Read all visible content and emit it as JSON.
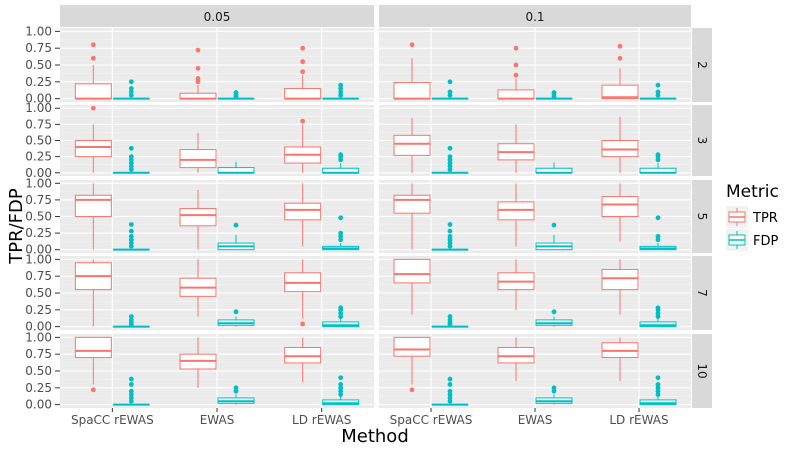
{
  "chart_data": {
    "type": "boxplot",
    "xlabel": "Method",
    "ylabel": "TPR/FDP",
    "ylim": [
      -0.05,
      1.05
    ],
    "yticks": [
      "0.00",
      "0.25",
      "0.50",
      "0.75",
      "1.00"
    ],
    "methods": [
      "SpaCC rEWAS",
      "EWAS",
      "LD rEWAS"
    ],
    "col_facets": [
      "0.05",
      "0.1"
    ],
    "row_facets": [
      "2",
      "3",
      "5",
      "7",
      "10"
    ],
    "legend": {
      "title": "Metric",
      "entries": [
        {
          "name": "TPR",
          "color": "#F8766D"
        },
        {
          "name": "FDP",
          "color": "#00BFC4"
        }
      ]
    },
    "panels": [
      {
        "col": "0.05",
        "row": "2",
        "boxes": [
          {
            "method": "SpaCC rEWAS",
            "metric": "TPR",
            "q1": 0.0,
            "median": 0.0,
            "q3": 0.22,
            "lo": 0.0,
            "hi": 0.5,
            "outliers": [
              0.6,
              0.8
            ]
          },
          {
            "method": "SpaCC rEWAS",
            "metric": "FDP",
            "q1": 0.0,
            "median": 0.0,
            "q3": 0.0,
            "lo": 0.0,
            "hi": 0.0,
            "outliers": [
              0.05,
              0.1,
              0.15,
              0.25
            ]
          },
          {
            "method": "EWAS",
            "metric": "TPR",
            "q1": 0.0,
            "median": 0.0,
            "q3": 0.08,
            "lo": 0.0,
            "hi": 0.2,
            "outliers": [
              0.25,
              0.3,
              0.45,
              0.72
            ]
          },
          {
            "method": "EWAS",
            "metric": "FDP",
            "q1": 0.0,
            "median": 0.0,
            "q3": 0.0,
            "lo": 0.0,
            "hi": 0.0,
            "outliers": [
              0.03,
              0.06,
              0.09
            ]
          },
          {
            "method": "LD rEWAS",
            "metric": "TPR",
            "q1": 0.0,
            "median": 0.0,
            "q3": 0.15,
            "lo": 0.0,
            "hi": 0.35,
            "outliers": [
              0.4,
              0.55,
              0.75
            ]
          },
          {
            "method": "LD rEWAS",
            "metric": "FDP",
            "q1": 0.0,
            "median": 0.0,
            "q3": 0.0,
            "lo": 0.0,
            "hi": 0.0,
            "outliers": [
              0.05,
              0.1,
              0.15,
              0.2
            ]
          }
        ]
      },
      {
        "col": "0.1",
        "row": "2",
        "boxes": [
          {
            "method": "SpaCC rEWAS",
            "metric": "TPR",
            "q1": 0.0,
            "median": 0.0,
            "q3": 0.24,
            "lo": 0.0,
            "hi": 0.6,
            "outliers": [
              0.8
            ]
          },
          {
            "method": "SpaCC rEWAS",
            "metric": "FDP",
            "q1": 0.0,
            "median": 0.0,
            "q3": 0.0,
            "lo": 0.0,
            "hi": 0.0,
            "outliers": [
              0.05,
              0.1,
              0.25
            ]
          },
          {
            "method": "EWAS",
            "metric": "TPR",
            "q1": 0.0,
            "median": 0.0,
            "q3": 0.13,
            "lo": 0.0,
            "hi": 0.3,
            "outliers": [
              0.35,
              0.5,
              0.75
            ]
          },
          {
            "method": "EWAS",
            "metric": "FDP",
            "q1": 0.0,
            "median": 0.0,
            "q3": 0.0,
            "lo": 0.0,
            "hi": 0.0,
            "outliers": [
              0.03,
              0.06,
              0.09
            ]
          },
          {
            "method": "LD rEWAS",
            "metric": "TPR",
            "q1": 0.0,
            "median": 0.02,
            "q3": 0.2,
            "lo": 0.0,
            "hi": 0.45,
            "outliers": [
              0.6,
              0.78
            ]
          },
          {
            "method": "LD rEWAS",
            "metric": "FDP",
            "q1": 0.0,
            "median": 0.0,
            "q3": 0.0,
            "lo": 0.0,
            "hi": 0.0,
            "outliers": [
              0.05,
              0.1,
              0.2
            ]
          }
        ]
      },
      {
        "col": "0.05",
        "row": "3",
        "boxes": [
          {
            "method": "SpaCC rEWAS",
            "metric": "TPR",
            "q1": 0.25,
            "median": 0.4,
            "q3": 0.5,
            "lo": 0.0,
            "hi": 0.75,
            "outliers": [
              1.0
            ]
          },
          {
            "method": "SpaCC rEWAS",
            "metric": "FDP",
            "q1": 0.0,
            "median": 0.0,
            "q3": 0.0,
            "lo": 0.0,
            "hi": 0.0,
            "outliers": [
              0.05,
              0.1,
              0.15,
              0.2,
              0.25,
              0.38
            ]
          },
          {
            "method": "EWAS",
            "metric": "TPR",
            "q1": 0.08,
            "median": 0.2,
            "q3": 0.36,
            "lo": 0.0,
            "hi": 0.62,
            "outliers": []
          },
          {
            "method": "EWAS",
            "metric": "FDP",
            "q1": 0.0,
            "median": 0.0,
            "q3": 0.08,
            "lo": 0.0,
            "hi": 0.17,
            "outliers": []
          },
          {
            "method": "LD rEWAS",
            "metric": "TPR",
            "q1": 0.15,
            "median": 0.28,
            "q3": 0.4,
            "lo": 0.0,
            "hi": 0.75,
            "outliers": [
              0.8
            ]
          },
          {
            "method": "LD rEWAS",
            "metric": "FDP",
            "q1": 0.0,
            "median": 0.0,
            "q3": 0.07,
            "lo": 0.0,
            "hi": 0.15,
            "outliers": [
              0.2,
              0.25,
              0.28
            ]
          }
        ]
      },
      {
        "col": "0.1",
        "row": "3",
        "boxes": [
          {
            "method": "SpaCC rEWAS",
            "metric": "TPR",
            "q1": 0.27,
            "median": 0.45,
            "q3": 0.58,
            "lo": 0.0,
            "hi": 0.85,
            "outliers": []
          },
          {
            "method": "SpaCC rEWAS",
            "metric": "FDP",
            "q1": 0.0,
            "median": 0.0,
            "q3": 0.0,
            "lo": 0.0,
            "hi": 0.0,
            "outliers": [
              0.05,
              0.1,
              0.15,
              0.2,
              0.25,
              0.38
            ]
          },
          {
            "method": "EWAS",
            "metric": "TPR",
            "q1": 0.2,
            "median": 0.32,
            "q3": 0.45,
            "lo": 0.0,
            "hi": 0.75,
            "outliers": []
          },
          {
            "method": "EWAS",
            "metric": "FDP",
            "q1": 0.0,
            "median": 0.0,
            "q3": 0.07,
            "lo": 0.0,
            "hi": 0.16,
            "outliers": []
          },
          {
            "method": "LD rEWAS",
            "metric": "TPR",
            "q1": 0.25,
            "median": 0.36,
            "q3": 0.5,
            "lo": 0.0,
            "hi": 0.87,
            "outliers": []
          },
          {
            "method": "LD rEWAS",
            "metric": "FDP",
            "q1": 0.0,
            "median": 0.0,
            "q3": 0.07,
            "lo": 0.0,
            "hi": 0.15,
            "outliers": [
              0.2,
              0.25,
              0.28
            ]
          }
        ]
      },
      {
        "col": "0.05",
        "row": "5",
        "boxes": [
          {
            "method": "SpaCC rEWAS",
            "metric": "TPR",
            "q1": 0.5,
            "median": 0.75,
            "q3": 0.82,
            "lo": 0.0,
            "hi": 1.0,
            "outliers": []
          },
          {
            "method": "SpaCC rEWAS",
            "metric": "FDP",
            "q1": 0.0,
            "median": 0.0,
            "q3": 0.0,
            "lo": 0.0,
            "hi": 0.0,
            "outliers": [
              0.05,
              0.1,
              0.15,
              0.2,
              0.28,
              0.38
            ]
          },
          {
            "method": "EWAS",
            "metric": "TPR",
            "q1": 0.36,
            "median": 0.52,
            "q3": 0.62,
            "lo": 0.0,
            "hi": 0.9,
            "outliers": []
          },
          {
            "method": "EWAS",
            "metric": "FDP",
            "q1": 0.0,
            "median": 0.05,
            "q3": 0.1,
            "lo": 0.0,
            "hi": 0.22,
            "outliers": [
              0.37
            ]
          },
          {
            "method": "LD rEWAS",
            "metric": "TPR",
            "q1": 0.45,
            "median": 0.6,
            "q3": 0.7,
            "lo": 0.05,
            "hi": 1.0,
            "outliers": []
          },
          {
            "method": "LD rEWAS",
            "metric": "FDP",
            "q1": 0.0,
            "median": 0.02,
            "q3": 0.05,
            "lo": 0.0,
            "hi": 0.1,
            "outliers": [
              0.15,
              0.2,
              0.25,
              0.48
            ]
          }
        ]
      },
      {
        "col": "0.1",
        "row": "5",
        "boxes": [
          {
            "method": "SpaCC rEWAS",
            "metric": "TPR",
            "q1": 0.55,
            "median": 0.75,
            "q3": 0.82,
            "lo": 0.0,
            "hi": 1.0,
            "outliers": []
          },
          {
            "method": "SpaCC rEWAS",
            "metric": "FDP",
            "q1": 0.0,
            "median": 0.0,
            "q3": 0.0,
            "lo": 0.0,
            "hi": 0.0,
            "outliers": [
              0.05,
              0.1,
              0.15,
              0.2,
              0.28,
              0.38
            ]
          },
          {
            "method": "EWAS",
            "metric": "TPR",
            "q1": 0.45,
            "median": 0.6,
            "q3": 0.72,
            "lo": 0.05,
            "hi": 1.0,
            "outliers": []
          },
          {
            "method": "EWAS",
            "metric": "FDP",
            "q1": 0.0,
            "median": 0.05,
            "q3": 0.1,
            "lo": 0.0,
            "hi": 0.22,
            "outliers": [
              0.37
            ]
          },
          {
            "method": "LD rEWAS",
            "metric": "TPR",
            "q1": 0.5,
            "median": 0.68,
            "q3": 0.8,
            "lo": 0.12,
            "hi": 1.0,
            "outliers": []
          },
          {
            "method": "LD rEWAS",
            "metric": "FDP",
            "q1": 0.0,
            "median": 0.02,
            "q3": 0.05,
            "lo": 0.0,
            "hi": 0.1,
            "outliers": [
              0.15,
              0.2,
              0.48
            ]
          }
        ]
      },
      {
        "col": "0.05",
        "row": "7",
        "boxes": [
          {
            "method": "SpaCC rEWAS",
            "metric": "TPR",
            "q1": 0.55,
            "median": 0.75,
            "q3": 0.95,
            "lo": 0.0,
            "hi": 1.0,
            "outliers": []
          },
          {
            "method": "SpaCC rEWAS",
            "metric": "FDP",
            "q1": 0.0,
            "median": 0.0,
            "q3": 0.0,
            "lo": 0.0,
            "hi": 0.0,
            "outliers": [
              0.03,
              0.06,
              0.1,
              0.15
            ]
          },
          {
            "method": "EWAS",
            "metric": "TPR",
            "q1": 0.45,
            "median": 0.58,
            "q3": 0.72,
            "lo": 0.15,
            "hi": 1.0,
            "outliers": []
          },
          {
            "method": "EWAS",
            "metric": "FDP",
            "q1": 0.02,
            "median": 0.05,
            "q3": 0.1,
            "lo": 0.0,
            "hi": 0.15,
            "outliers": [
              0.22
            ]
          },
          {
            "method": "LD rEWAS",
            "metric": "TPR",
            "q1": 0.52,
            "median": 0.65,
            "q3": 0.8,
            "lo": 0.12,
            "hi": 1.0,
            "outliers": [
              0.04
            ]
          },
          {
            "method": "LD rEWAS",
            "metric": "FDP",
            "q1": 0.0,
            "median": 0.02,
            "q3": 0.07,
            "lo": 0.0,
            "hi": 0.12,
            "outliers": [
              0.15,
              0.2,
              0.25,
              0.28
            ]
          }
        ]
      },
      {
        "col": "0.1",
        "row": "7",
        "boxes": [
          {
            "method": "SpaCC rEWAS",
            "metric": "TPR",
            "q1": 0.65,
            "median": 0.78,
            "q3": 1.0,
            "lo": 0.18,
            "hi": 1.0,
            "outliers": []
          },
          {
            "method": "SpaCC rEWAS",
            "metric": "FDP",
            "q1": 0.0,
            "median": 0.0,
            "q3": 0.0,
            "lo": 0.0,
            "hi": 0.0,
            "outliers": [
              0.03,
              0.06,
              0.1,
              0.15
            ]
          },
          {
            "method": "EWAS",
            "metric": "TPR",
            "q1": 0.55,
            "median": 0.67,
            "q3": 0.8,
            "lo": 0.25,
            "hi": 1.0,
            "outliers": []
          },
          {
            "method": "EWAS",
            "metric": "FDP",
            "q1": 0.02,
            "median": 0.05,
            "q3": 0.1,
            "lo": 0.0,
            "hi": 0.15,
            "outliers": [
              0.22
            ]
          },
          {
            "method": "LD rEWAS",
            "metric": "TPR",
            "q1": 0.55,
            "median": 0.72,
            "q3": 0.85,
            "lo": 0.18,
            "hi": 1.0,
            "outliers": []
          },
          {
            "method": "LD rEWAS",
            "metric": "FDP",
            "q1": 0.0,
            "median": 0.02,
            "q3": 0.07,
            "lo": 0.0,
            "hi": 0.12,
            "outliers": [
              0.15,
              0.2,
              0.25,
              0.28
            ]
          }
        ]
      },
      {
        "col": "0.05",
        "row": "10",
        "boxes": [
          {
            "method": "SpaCC rEWAS",
            "metric": "TPR",
            "q1": 0.7,
            "median": 0.8,
            "q3": 1.0,
            "lo": 0.3,
            "hi": 1.0,
            "outliers": [
              0.22
            ]
          },
          {
            "method": "SpaCC rEWAS",
            "metric": "FDP",
            "q1": 0.0,
            "median": 0.0,
            "q3": 0.0,
            "lo": 0.0,
            "hi": 0.0,
            "outliers": [
              0.05,
              0.1,
              0.15,
              0.2,
              0.3,
              0.38
            ]
          },
          {
            "method": "EWAS",
            "metric": "TPR",
            "q1": 0.53,
            "median": 0.65,
            "q3": 0.75,
            "lo": 0.25,
            "hi": 1.0,
            "outliers": []
          },
          {
            "method": "EWAS",
            "metric": "FDP",
            "q1": 0.02,
            "median": 0.05,
            "q3": 0.1,
            "lo": 0.0,
            "hi": 0.15,
            "outliers": [
              0.2,
              0.25
            ]
          },
          {
            "method": "LD rEWAS",
            "metric": "TPR",
            "q1": 0.62,
            "median": 0.72,
            "q3": 0.85,
            "lo": 0.33,
            "hi": 1.0,
            "outliers": []
          },
          {
            "method": "LD rEWAS",
            "metric": "FDP",
            "q1": 0.0,
            "median": 0.02,
            "q3": 0.07,
            "lo": 0.0,
            "hi": 0.12,
            "outliers": [
              0.15,
              0.2,
              0.25,
              0.3,
              0.4
            ]
          }
        ]
      },
      {
        "col": "0.1",
        "row": "10",
        "boxes": [
          {
            "method": "SpaCC rEWAS",
            "metric": "TPR",
            "q1": 0.72,
            "median": 0.82,
            "q3": 1.0,
            "lo": 0.3,
            "hi": 1.0,
            "outliers": [
              0.22
            ]
          },
          {
            "method": "SpaCC rEWAS",
            "metric": "FDP",
            "q1": 0.0,
            "median": 0.0,
            "q3": 0.0,
            "lo": 0.0,
            "hi": 0.0,
            "outliers": [
              0.05,
              0.1,
              0.15,
              0.2,
              0.3,
              0.38
            ]
          },
          {
            "method": "EWAS",
            "metric": "TPR",
            "q1": 0.62,
            "median": 0.72,
            "q3": 0.85,
            "lo": 0.35,
            "hi": 1.0,
            "outliers": []
          },
          {
            "method": "EWAS",
            "metric": "FDP",
            "q1": 0.02,
            "median": 0.05,
            "q3": 0.1,
            "lo": 0.0,
            "hi": 0.15,
            "outliers": [
              0.2,
              0.25
            ]
          },
          {
            "method": "LD rEWAS",
            "metric": "TPR",
            "q1": 0.7,
            "median": 0.8,
            "q3": 0.92,
            "lo": 0.35,
            "hi": 1.0,
            "outliers": []
          },
          {
            "method": "LD rEWAS",
            "metric": "FDP",
            "q1": 0.0,
            "median": 0.02,
            "q3": 0.07,
            "lo": 0.0,
            "hi": 0.12,
            "outliers": [
              0.15,
              0.2,
              0.25,
              0.3,
              0.4
            ]
          }
        ]
      }
    ]
  }
}
